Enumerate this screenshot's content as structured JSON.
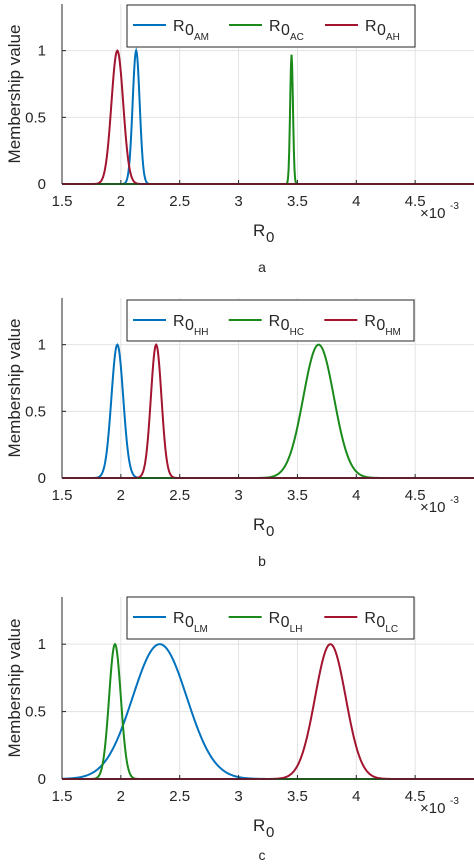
{
  "figure": {
    "captions": [
      "a",
      "b",
      "c"
    ]
  },
  "colors": {
    "blue": "#0072BD",
    "green": "#1A8A1A",
    "red": "#A2142F"
  },
  "chart_data": [
    {
      "type": "line",
      "caption": "a",
      "xlabel": "R",
      "xlabel_sub": "0",
      "ylabel": "Membership value",
      "x_multiplier": "×10",
      "x_multiplier_exp": "-3",
      "xlim": [
        1.5,
        5.0
      ],
      "ylim": [
        0,
        1.35
      ],
      "xticks": [
        "1.5",
        "2",
        "2.5",
        "3",
        "3.5",
        "4",
        "4.5"
      ],
      "yticks": [
        "0",
        "0.5",
        "1"
      ],
      "grid": true,
      "legend_position": "top-right",
      "series": [
        {
          "name": "R",
          "name_sub": "0",
          "name_subsub": "AM",
          "color": "#0072BD",
          "peak": 2.13,
          "width": 0.03,
          "height": 1.0
        },
        {
          "name": "R",
          "name_sub": "0",
          "name_subsub": "AC",
          "color": "#1A8A1A",
          "peak": 3.45,
          "width": 0.012,
          "height": 0.97
        },
        {
          "name": "R",
          "name_sub": "0",
          "name_subsub": "AH",
          "color": "#A2142F",
          "peak": 1.97,
          "width": 0.05,
          "height": 1.0
        }
      ]
    },
    {
      "type": "line",
      "caption": "b",
      "xlabel": "R",
      "xlabel_sub": "0",
      "ylabel": "Membership value",
      "x_multiplier": "×10",
      "x_multiplier_exp": "-3",
      "xlim": [
        1.5,
        5.0
      ],
      "ylim": [
        0,
        1.35
      ],
      "xticks": [
        "1.5",
        "2",
        "2.5",
        "3",
        "3.5",
        "4",
        "4.5"
      ],
      "yticks": [
        "0",
        "0.5",
        "1"
      ],
      "grid": true,
      "legend_position": "top-right",
      "series": [
        {
          "name": "R",
          "name_sub": "0",
          "name_subsub": "HH",
          "color": "#0072BD",
          "peak": 1.97,
          "width": 0.05,
          "height": 1.0
        },
        {
          "name": "R",
          "name_sub": "0",
          "name_subsub": "HC",
          "color": "#1A8A1A",
          "peak": 3.68,
          "width": 0.13,
          "height": 1.0
        },
        {
          "name": "R",
          "name_sub": "0",
          "name_subsub": "HM",
          "color": "#A2142F",
          "peak": 2.3,
          "width": 0.045,
          "height": 1.0
        }
      ]
    },
    {
      "type": "line",
      "caption": "c",
      "xlabel": "R",
      "xlabel_sub": "0",
      "ylabel": "Membership value",
      "x_multiplier": "×10",
      "x_multiplier_exp": "-3",
      "xlim": [
        1.5,
        5.0
      ],
      "ylim": [
        0,
        1.35
      ],
      "xticks": [
        "1.5",
        "2",
        "2.5",
        "3",
        "3.5",
        "4",
        "4.5"
      ],
      "yticks": [
        "0",
        "0.5",
        "1"
      ],
      "grid": true,
      "legend_position": "top-right",
      "series": [
        {
          "name": "R",
          "name_sub": "0",
          "name_subsub": "LM",
          "color": "#0072BD",
          "peak": 2.33,
          "width": 0.23,
          "height": 1.0
        },
        {
          "name": "R",
          "name_sub": "0",
          "name_subsub": "LH",
          "color": "#1A8A1A",
          "peak": 1.95,
          "width": 0.05,
          "height": 1.0
        },
        {
          "name": "R",
          "name_sub": "0",
          "name_subsub": "LC",
          "color": "#A2142F",
          "peak": 3.78,
          "width": 0.13,
          "height": 1.0
        }
      ]
    }
  ]
}
